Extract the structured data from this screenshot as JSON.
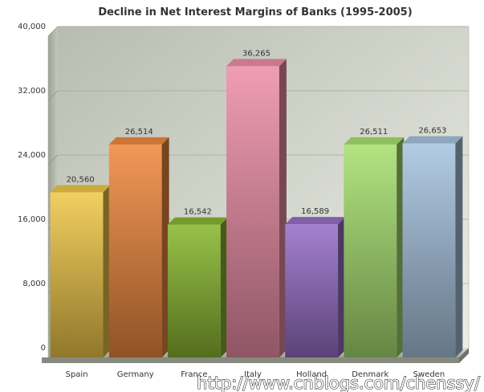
{
  "chart_data": {
    "type": "bar",
    "title": "Decline in Net Interest Margins of Banks (1995-2005)",
    "xlabel": "",
    "ylabel": "",
    "ylim": [
      0,
      40000
    ],
    "yticks": [
      "0",
      "8,000",
      "16,000",
      "24,000",
      "32,000",
      "40,000"
    ],
    "grid": true,
    "legend": "none",
    "three_d": true,
    "categories": [
      "Spain",
      "Germany",
      "France",
      "Italy",
      "Holland",
      "Denmark",
      "Sweden"
    ],
    "values": [
      20560,
      26514,
      16542,
      36265,
      16589,
      26511,
      26653
    ],
    "value_labels": [
      "20,560",
      "26,514",
      "16,542",
      "36,265",
      "16,589",
      "26,511",
      "26,653"
    ],
    "colors": [
      "#f0c84a",
      "#f08a40",
      "#8ab830",
      "#ee90a8",
      "#9870c8",
      "#a8e070",
      "#a8c4e0"
    ]
  },
  "watermark": "http://www.cnblogs.com/chenssy/"
}
